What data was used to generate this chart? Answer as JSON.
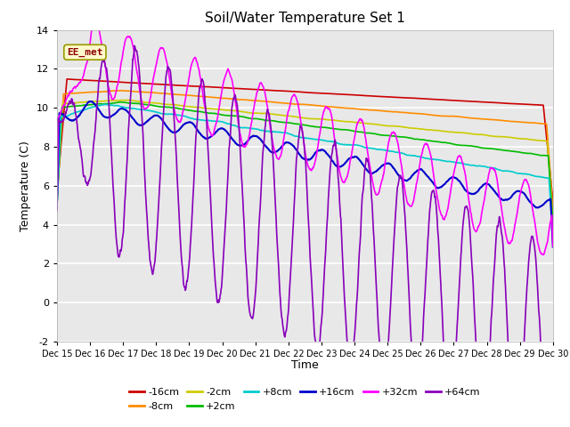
{
  "title": "Soil/Water Temperature Set 1",
  "xlabel": "Time",
  "ylabel": "Temperature (C)",
  "ylim": [
    -2,
    14
  ],
  "xlim": [
    0,
    15
  ],
  "xtick_labels": [
    "Dec 15",
    "Dec 16",
    "Dec 17",
    "Dec 18",
    "Dec 19",
    "Dec 20",
    "Dec 21",
    "Dec 22",
    "Dec 23",
    "Dec 24",
    "Dec 25",
    "Dec 26",
    "Dec 27",
    "Dec 28",
    "Dec 29",
    "Dec 30"
  ],
  "annotation_text": "EE_met",
  "annotation_color": "#8B0000",
  "annotation_bg": "#FFFACD",
  "plot_bg": "#E8E8E8",
  "fig_bg": "#FFFFFF",
  "series": {
    "-16cm": {
      "color": "#CC0000",
      "lw": 1.2
    },
    "-8cm": {
      "color": "#FF8C00",
      "lw": 1.2
    },
    "-2cm": {
      "color": "#CCCC00",
      "lw": 1.2
    },
    "+2cm": {
      "color": "#00BB00",
      "lw": 1.2
    },
    "+8cm": {
      "color": "#00CCCC",
      "lw": 1.2
    },
    "+16cm": {
      "color": "#0000CC",
      "lw": 1.5
    },
    "+32cm": {
      "color": "#FF00FF",
      "lw": 1.2
    },
    "+64cm": {
      "color": "#8800BB",
      "lw": 1.2
    }
  },
  "legend_order": [
    "-16cm",
    "-8cm",
    "-2cm",
    "+2cm",
    "+8cm",
    "+16cm",
    "+32cm",
    "+64cm"
  ]
}
